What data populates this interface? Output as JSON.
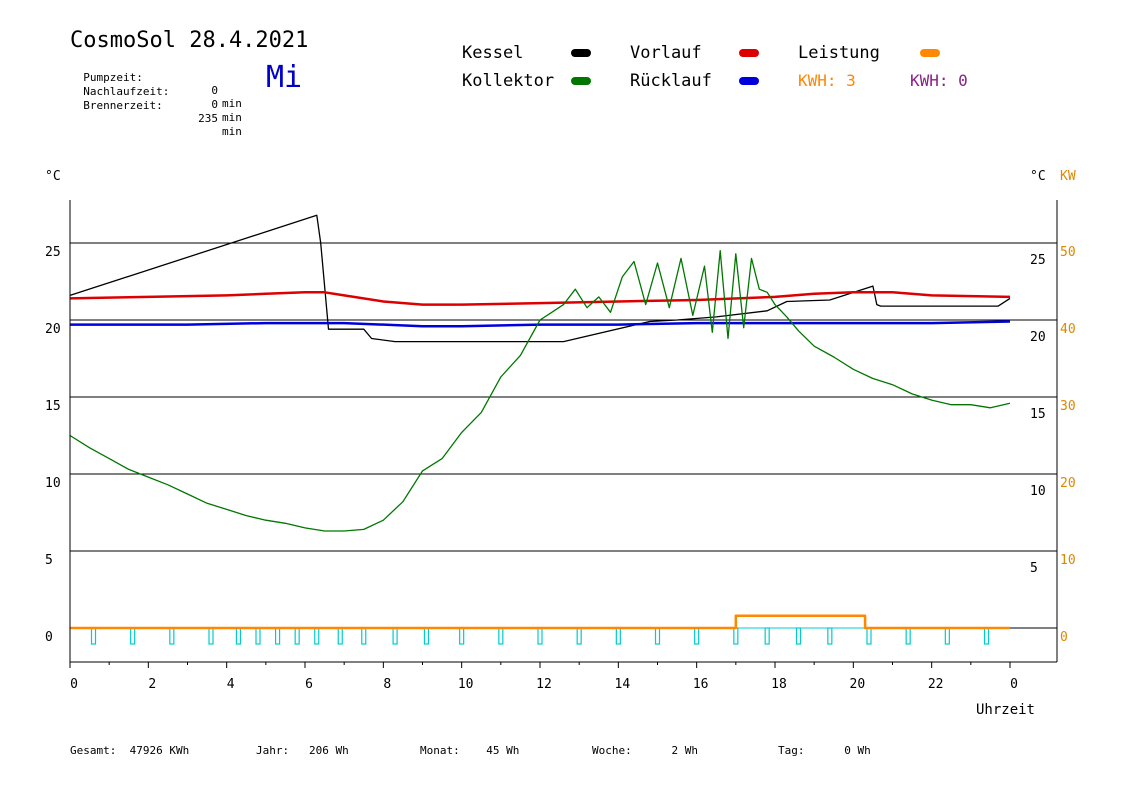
{
  "header": {
    "title": "CosmoSol 28.4.2021",
    "weekday": "Mi",
    "info": [
      {
        "label": "Pumpzeit:",
        "value": "0",
        "unit": "min"
      },
      {
        "label": "Nachlaufzeit:",
        "value": "0",
        "unit": "min"
      },
      {
        "label": "Brennerzeit:",
        "value": "235",
        "unit": "min"
      }
    ]
  },
  "legend": [
    {
      "name": "Kessel",
      "color": "#000000"
    },
    {
      "name": "Kollektor",
      "color": "#007700"
    },
    {
      "name": "Vorlauf",
      "color": "#dd0000"
    },
    {
      "name": "Rücklauf",
      "color": "#0000dd"
    },
    {
      "name": "Leistung",
      "color": "#ff8800"
    }
  ],
  "kwh": [
    {
      "text": "KWH: 3",
      "color": "#ff8800"
    },
    {
      "text": "KWH: 0",
      "color": "#882288"
    }
  ],
  "footer": [
    {
      "label": "Gesamt:",
      "value": "47926 KWh"
    },
    {
      "label": "Jahr:",
      "value": "206 Wh"
    },
    {
      "label": "Monat:",
      "value": "45 Wh"
    },
    {
      "label": "Woche:",
      "value": "2 Wh"
    },
    {
      "label": "Tag:",
      "value": "0 Wh"
    }
  ],
  "chart_data": {
    "type": "line",
    "xlabel": "Uhrzeit",
    "xlim": [
      0,
      24
    ],
    "x_tick_labels": [
      "0",
      "2",
      "4",
      "6",
      "8",
      "10",
      "12",
      "14",
      "16",
      "18",
      "20",
      "22",
      "0"
    ],
    "y_left": {
      "unit": "°C",
      "range": [
        -1.5,
        27.5
      ],
      "ticks": [
        "25",
        "20",
        "15",
        "10",
        "5",
        "0"
      ]
    },
    "y_right_temp": {
      "unit": "°C",
      "ticks": [
        "25",
        "20",
        "15",
        "10",
        "5"
      ]
    },
    "y_right_power": {
      "unit": "KW",
      "range": [
        -3,
        55
      ],
      "ticks": [
        "50",
        "40",
        "30",
        "20",
        "10",
        "0"
      ]
    },
    "grid_y": [
      25,
      20,
      15,
      10,
      5,
      0
    ],
    "series": [
      {
        "name": "Kessel",
        "color": "#000000",
        "x": [
          0,
          6.3,
          6.4,
          6.6,
          7.5,
          7.7,
          8.3,
          12.6,
          14.8,
          15.5,
          16.5,
          17.8,
          18.3,
          19.4,
          20.5,
          20.55,
          20.6,
          20.7,
          23.7,
          24.0
        ],
        "y": [
          21.6,
          26.8,
          25.0,
          19.4,
          19.4,
          18.8,
          18.6,
          18.6,
          19.9,
          20.0,
          20.2,
          20.6,
          21.2,
          21.3,
          22.2,
          21.6,
          21.0,
          20.9,
          20.9,
          21.4
        ]
      },
      {
        "name": "Vorlauf",
        "color": "#dd0000",
        "x": [
          0,
          2,
          4,
          5,
          6,
          6.5,
          7.0,
          8.0,
          9.0,
          10,
          12,
          14,
          16,
          18,
          19,
          20,
          21,
          22,
          24
        ],
        "y": [
          21.4,
          21.5,
          21.6,
          21.7,
          21.8,
          21.8,
          21.6,
          21.2,
          21.0,
          21.0,
          21.1,
          21.2,
          21.3,
          21.5,
          21.7,
          21.8,
          21.8,
          21.6,
          21.5
        ]
      },
      {
        "name": "Rücklauf",
        "color": "#0000dd",
        "x": [
          0,
          3,
          5,
          7,
          9,
          10,
          12,
          14,
          16,
          18,
          20,
          22,
          24
        ],
        "y": [
          19.7,
          19.7,
          19.8,
          19.8,
          19.6,
          19.6,
          19.7,
          19.7,
          19.8,
          19.8,
          19.8,
          19.8,
          19.9
        ]
      },
      {
        "name": "Kollektor",
        "color": "#007700",
        "x": [
          0,
          0.5,
          1,
          1.5,
          2,
          2.5,
          3,
          3.5,
          4,
          4.5,
          5,
          5.5,
          6,
          6.5,
          7,
          7.5,
          8,
          8.5,
          9,
          9.5,
          10,
          10.5,
          11,
          11.5,
          12,
          12.3,
          12.6,
          12.9,
          13.2,
          13.5,
          13.8,
          14.1,
          14.4,
          14.7,
          15.0,
          15.3,
          15.6,
          15.9,
          16.2,
          16.4,
          16.6,
          16.8,
          17.0,
          17.2,
          17.4,
          17.6,
          17.8,
          18.0,
          18.3,
          18.6,
          19.0,
          19.5,
          20,
          20.5,
          21,
          21.5,
          22,
          22.5,
          23,
          23.5,
          24
        ],
        "y": [
          12.5,
          11.7,
          11.0,
          10.3,
          9.8,
          9.3,
          8.7,
          8.1,
          7.7,
          7.3,
          7.0,
          6.8,
          6.5,
          6.3,
          6.3,
          6.4,
          7.0,
          8.2,
          10.2,
          11.0,
          12.7,
          14.0,
          16.3,
          17.7,
          20.0,
          20.5,
          21.0,
          22.0,
          20.8,
          21.5,
          20.5,
          22.8,
          23.8,
          21.0,
          23.7,
          20.8,
          24.0,
          20.3,
          23.5,
          19.2,
          24.5,
          18.8,
          24.3,
          19.5,
          24.0,
          22.0,
          21.8,
          21.0,
          20.2,
          19.3,
          18.3,
          17.6,
          16.8,
          16.2,
          15.8,
          15.2,
          14.8,
          14.5,
          14.5,
          14.3,
          14.6
        ]
      },
      {
        "name": "Leistung",
        "color": "#ff8800",
        "x": [
          0,
          17.0,
          17.0,
          20.3,
          20.3,
          24
        ],
        "y": [
          0,
          0,
          1.6,
          1.6,
          0,
          0
        ]
      }
    ],
    "pulses_x": [
      0.6,
      1.6,
      2.6,
      3.6,
      4.3,
      4.8,
      5.3,
      5.8,
      6.3,
      6.9,
      7.5,
      8.3,
      9.1,
      10.0,
      11.0,
      12.0,
      13.0,
      14.0,
      15.0,
      16.0,
      17.0,
      17.8,
      18.6,
      19.4,
      20.4,
      21.4,
      22.4,
      23.4
    ],
    "pulse_color": "#00cccc"
  }
}
